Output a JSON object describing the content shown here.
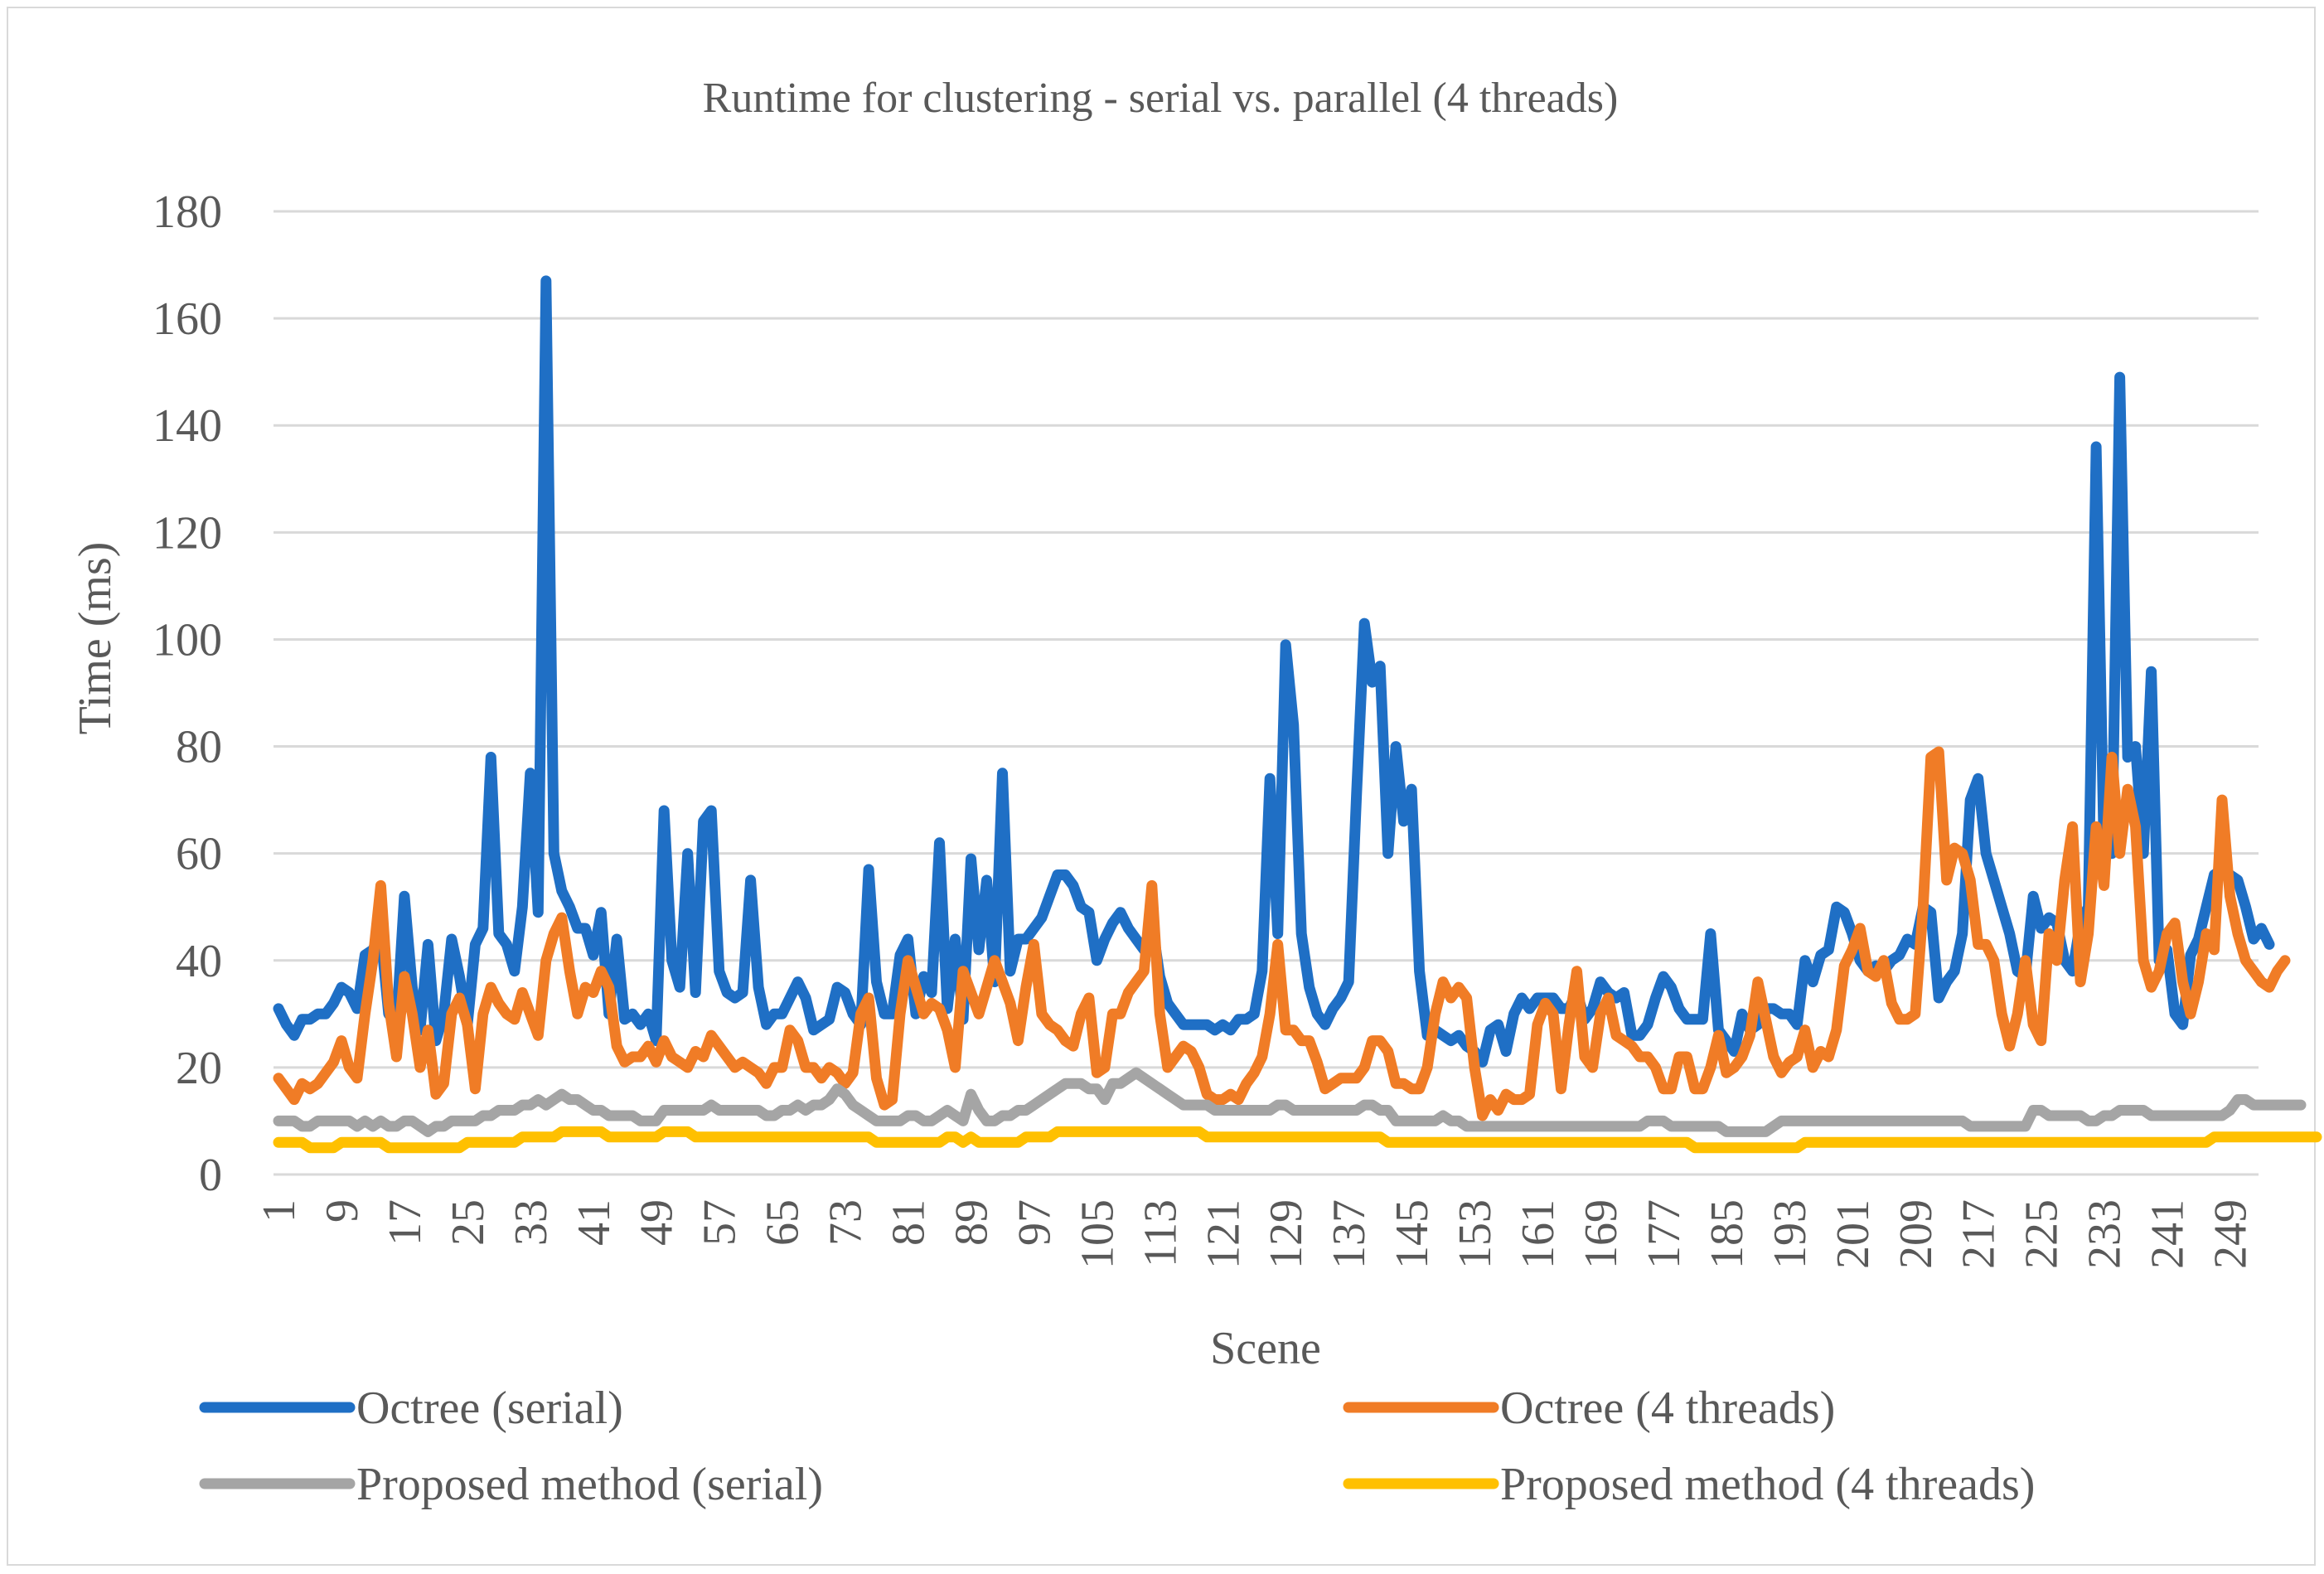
{
  "chart_data": {
    "type": "line",
    "title": "Runtime for clustering - serial vs. parallel (4 threads)",
    "xlabel": "Scene",
    "ylabel": "Time (ms)",
    "ylim": [
      0,
      180
    ],
    "yticks": [
      0,
      20,
      40,
      60,
      80,
      100,
      120,
      140,
      160,
      180
    ],
    "grid": true,
    "legend_position": "bottom",
    "x_range": [
      1,
      252
    ],
    "x_tick_labels": [
      "1",
      "9",
      "17",
      "25",
      "33",
      "41",
      "49",
      "57",
      "65",
      "73",
      "81",
      "89",
      "97",
      "105",
      "113",
      "121",
      "129",
      "137",
      "145",
      "153",
      "161",
      "169",
      "177",
      "185",
      "193",
      "201",
      "209",
      "217",
      "225",
      "233",
      "241",
      "249"
    ],
    "series": [
      {
        "name": "Octree (serial)",
        "color": "#1f6fc5",
        "values": [
          31,
          28,
          26,
          29,
          29,
          30,
          30,
          32,
          35,
          34,
          31,
          41,
          42,
          45,
          30,
          28,
          52,
          35,
          27,
          43,
          25,
          30,
          44,
          37,
          28,
          43,
          46,
          78,
          45,
          43,
          38,
          50,
          75,
          49,
          167,
          60,
          53,
          50,
          46,
          46,
          41,
          49,
          30,
          44,
          29,
          30,
          28,
          30,
          25,
          68,
          40,
          35,
          60,
          34,
          66,
          68,
          38,
          34,
          33,
          34,
          55,
          35,
          28,
          30,
          30,
          33,
          36,
          33,
          27,
          28,
          29,
          35,
          34,
          30,
          28,
          57,
          36,
          30,
          30,
          41,
          44,
          30,
          37,
          34,
          62,
          31,
          44,
          29,
          59,
          42,
          55,
          36,
          75,
          38,
          44,
          44,
          46,
          48,
          52,
          56,
          56,
          54,
          50,
          49,
          40,
          44,
          47,
          49,
          46,
          44,
          42,
          47,
          37,
          32,
          30,
          28,
          28,
          28,
          28,
          27,
          28,
          27,
          29,
          29,
          30,
          38,
          74,
          45,
          99,
          84,
          45,
          35,
          30,
          28,
          31,
          33,
          36,
          71,
          103,
          92,
          95,
          60,
          80,
          66,
          72,
          38,
          26,
          27,
          26,
          25,
          26,
          24,
          23,
          21,
          27,
          28,
          23,
          30,
          33,
          31,
          33,
          33,
          33,
          31,
          31,
          34,
          29,
          31,
          36,
          34,
          33,
          34,
          26,
          26,
          28,
          33,
          37,
          35,
          31,
          29,
          29,
          29,
          45,
          27,
          25,
          23,
          30,
          27,
          28,
          31,
          31,
          30,
          30,
          28,
          40,
          36,
          41,
          42,
          50,
          49,
          45,
          40,
          38,
          39,
          38,
          40,
          41,
          44,
          43,
          50,
          49,
          33,
          36,
          38,
          45,
          70,
          74,
          60,
          55,
          50,
          45,
          38,
          37,
          52,
          46,
          48,
          47,
          40,
          38,
          47,
          50,
          136,
          60,
          60,
          149,
          78,
          80,
          60,
          94,
          40,
          42,
          30,
          28,
          41,
          44,
          50,
          56,
          57,
          56,
          55,
          50,
          44,
          46,
          43
        ]
      },
      {
        "name": "Octree (4 threads)",
        "color": "#f07c26",
        "values": [
          18,
          16,
          14,
          17,
          16,
          17,
          19,
          21,
          25,
          20,
          18,
          30,
          40,
          54,
          32,
          22,
          37,
          30,
          20,
          27,
          15,
          17,
          30,
          33,
          28,
          16,
          30,
          35,
          32,
          30,
          29,
          34,
          30,
          26,
          40,
          45,
          48,
          38,
          30,
          35,
          34,
          38,
          35,
          24,
          21,
          22,
          22,
          24,
          21,
          25,
          22,
          21,
          20,
          23,
          22,
          26,
          24,
          22,
          20,
          21,
          20,
          19,
          17,
          20,
          20,
          27,
          25,
          20,
          20,
          18,
          20,
          19,
          17,
          19,
          30,
          33,
          18,
          13,
          14,
          30,
          40,
          35,
          30,
          32,
          31,
          27,
          20,
          38,
          34,
          30,
          35,
          40,
          36,
          32,
          25,
          35,
          43,
          30,
          28,
          27,
          25,
          24,
          30,
          33,
          19,
          20,
          30,
          30,
          34,
          36,
          38,
          54,
          30,
          20,
          22,
          24,
          23,
          20,
          15,
          14,
          14,
          15,
          14,
          17,
          19,
          22,
          30,
          43,
          27,
          27,
          25,
          25,
          21,
          16,
          17,
          18,
          18,
          18,
          20,
          25,
          25,
          23,
          17,
          17,
          16,
          16,
          20,
          30,
          36,
          33,
          35,
          33,
          20,
          11,
          14,
          12,
          15,
          14,
          14,
          15,
          28,
          32,
          30,
          16,
          28,
          38,
          22,
          20,
          30,
          33,
          26,
          25,
          24,
          22,
          22,
          20,
          16,
          16,
          22,
          22,
          16,
          16,
          20,
          26,
          19,
          20,
          22,
          26,
          36,
          29,
          22,
          19,
          21,
          22,
          27,
          20,
          23,
          22,
          27,
          39,
          42,
          46,
          38,
          37,
          40,
          32,
          29,
          29,
          30,
          50,
          78,
          79,
          55,
          61,
          60,
          55,
          43,
          43,
          40,
          30,
          24,
          30,
          40,
          28,
          25,
          45,
          40,
          55,
          65,
          36,
          45,
          65,
          54,
          78,
          60,
          72,
          65,
          40,
          35,
          38,
          45,
          47,
          36,
          30,
          36,
          45,
          42,
          70,
          52,
          45,
          40,
          38,
          36,
          35,
          38,
          40
        ]
      },
      {
        "name": "Proposed method (serial)",
        "color": "#a5a5a5",
        "values": [
          10,
          10,
          10,
          9,
          9,
          10,
          10,
          10,
          10,
          10,
          9,
          10,
          9,
          10,
          9,
          9,
          10,
          10,
          9,
          8,
          9,
          9,
          10,
          10,
          10,
          10,
          11,
          11,
          12,
          12,
          12,
          13,
          13,
          14,
          13,
          14,
          15,
          14,
          14,
          13,
          12,
          12,
          11,
          11,
          11,
          11,
          10,
          10,
          10,
          12,
          12,
          12,
          12,
          12,
          12,
          13,
          12,
          12,
          12,
          12,
          12,
          12,
          11,
          11,
          12,
          12,
          13,
          12,
          13,
          13,
          14,
          16,
          15,
          13,
          12,
          11,
          10,
          10,
          10,
          10,
          11,
          11,
          10,
          10,
          11,
          12,
          11,
          10,
          15,
          12,
          10,
          10,
          11,
          11,
          12,
          12,
          13,
          14,
          15,
          16,
          17,
          17,
          17,
          16,
          16,
          14,
          17,
          17,
          18,
          19,
          18,
          17,
          16,
          15,
          14,
          13,
          13,
          13,
          13,
          12,
          12,
          12,
          12,
          12,
          12,
          12,
          12,
          13,
          13,
          12,
          12,
          12,
          12,
          12,
          12,
          12,
          12,
          12,
          13,
          13,
          12,
          12,
          10,
          10,
          10,
          10,
          10,
          10,
          11,
          10,
          10,
          9,
          9,
          9,
          9,
          9,
          9,
          9,
          9,
          9,
          9,
          9,
          9,
          9,
          9,
          9,
          9,
          9,
          9,
          9,
          9,
          9,
          9,
          9,
          10,
          10,
          10,
          9,
          9,
          9,
          9,
          9,
          9,
          9,
          8,
          8,
          8,
          8,
          8,
          8,
          9,
          10,
          10,
          10,
          10,
          10,
          10,
          10,
          10,
          10,
          10,
          10,
          10,
          10,
          10,
          10,
          10,
          10,
          10,
          10,
          10,
          10,
          10,
          10,
          10,
          9,
          9,
          9,
          9,
          9,
          9,
          9,
          9,
          12,
          12,
          11,
          11,
          11,
          11,
          11,
          10,
          10,
          11,
          11,
          12,
          12,
          12,
          12,
          11,
          11,
          11,
          11,
          11,
          11,
          11,
          11,
          11,
          11,
          12,
          14,
          14,
          13,
          13,
          13,
          13,
          13,
          13,
          13
        ]
      },
      {
        "name": "Proposed method (4 threads)",
        "color": "#ffc000",
        "values": [
          6,
          6,
          6,
          6,
          5,
          5,
          5,
          5,
          6,
          6,
          6,
          6,
          6,
          6,
          5,
          5,
          5,
          5,
          5,
          5,
          5,
          5,
          5,
          5,
          6,
          6,
          6,
          6,
          6,
          6,
          6,
          7,
          7,
          7,
          7,
          7,
          8,
          8,
          8,
          8,
          8,
          8,
          7,
          7,
          7,
          7,
          7,
          7,
          7,
          8,
          8,
          8,
          8,
          7,
          7,
          7,
          7,
          7,
          7,
          7,
          7,
          7,
          7,
          7,
          7,
          7,
          7,
          7,
          7,
          7,
          7,
          7,
          7,
          7,
          7,
          7,
          6,
          6,
          6,
          6,
          6,
          6,
          6,
          6,
          6,
          7,
          7,
          6,
          7,
          6,
          6,
          6,
          6,
          6,
          6,
          7,
          7,
          7,
          7,
          8,
          8,
          8,
          8,
          8,
          8,
          8,
          8,
          8,
          8,
          8,
          8,
          8,
          8,
          8,
          8,
          8,
          8,
          8,
          7,
          7,
          7,
          7,
          7,
          7,
          7,
          7,
          7,
          7,
          7,
          7,
          7,
          7,
          7,
          7,
          7,
          7,
          7,
          7,
          7,
          7,
          7,
          6,
          6,
          6,
          6,
          6,
          6,
          6,
          6,
          6,
          6,
          6,
          6,
          6,
          6,
          6,
          6,
          6,
          6,
          6,
          6,
          6,
          6,
          6,
          6,
          6,
          6,
          6,
          6,
          6,
          6,
          6,
          6,
          6,
          6,
          6,
          6,
          6,
          6,
          6,
          5,
          5,
          5,
          5,
          5,
          5,
          5,
          5,
          5,
          5,
          5,
          5,
          5,
          5,
          6,
          6,
          6,
          6,
          6,
          6,
          6,
          6,
          6,
          6,
          6,
          6,
          6,
          6,
          6,
          6,
          6,
          6,
          6,
          6,
          6,
          6,
          6,
          6,
          6,
          6,
          6,
          6,
          6,
          6,
          6,
          6,
          6,
          6,
          6,
          6,
          6,
          6,
          6,
          6,
          6,
          6,
          6,
          6,
          6,
          6,
          6,
          6,
          6,
          6,
          6,
          6,
          7,
          7,
          7,
          7,
          7,
          7,
          7,
          7,
          7,
          7,
          7,
          7,
          7,
          7
        ]
      }
    ]
  }
}
